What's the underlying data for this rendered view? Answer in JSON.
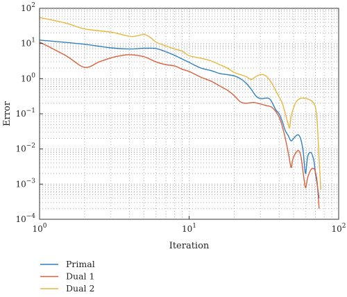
{
  "chart_data": {
    "type": "line",
    "title": "",
    "xlabel": "Iteration",
    "ylabel": "Error",
    "xscale": "log",
    "yscale": "log",
    "xlim": [
      1,
      100
    ],
    "ylim": [
      0.0001,
      100
    ],
    "grid": true,
    "legend_position": "bottom-left, outside plot",
    "x_tick_labels": [
      {
        "value": 1,
        "base": "10",
        "exp": "0"
      },
      {
        "value": 10,
        "base": "10",
        "exp": "1"
      },
      {
        "value": 100,
        "base": "10",
        "exp": "2"
      }
    ],
    "y_tick_labels": [
      {
        "value": 0.0001,
        "base": "10",
        "exp": "−4"
      },
      {
        "value": 0.001,
        "base": "10",
        "exp": "−3"
      },
      {
        "value": 0.01,
        "base": "10",
        "exp": "−2"
      },
      {
        "value": 0.1,
        "base": "10",
        "exp": "−1"
      },
      {
        "value": 1,
        "base": "10",
        "exp": "0"
      },
      {
        "value": 10,
        "base": "10",
        "exp": "1"
      },
      {
        "value": 100,
        "base": "10",
        "exp": "2"
      }
    ],
    "series": [
      {
        "name": "Primal",
        "color": "#2f7fc1",
        "points": [
          [
            1,
            12.5
          ],
          [
            2,
            9.5
          ],
          [
            3,
            7.5
          ],
          [
            4,
            7.0
          ],
          [
            5,
            7.3
          ],
          [
            6,
            7.2
          ],
          [
            7,
            5.8
          ],
          [
            8,
            4.6
          ],
          [
            9,
            3.6
          ],
          [
            10,
            2.9
          ],
          [
            12,
            2.0
          ],
          [
            14,
            1.7
          ],
          [
            16,
            1.4
          ],
          [
            18,
            1.3
          ],
          [
            20,
            1.2
          ],
          [
            22,
            1.0
          ],
          [
            24,
            0.75
          ],
          [
            26,
            0.5
          ],
          [
            28,
            0.32
          ],
          [
            30,
            0.27
          ],
          [
            33,
            0.28
          ],
          [
            35,
            0.25
          ],
          [
            38,
            0.13
          ],
          [
            40,
            0.1
          ],
          [
            42,
            0.06
          ],
          [
            44,
            0.033
          ],
          [
            46,
            0.024
          ],
          [
            48,
            0.017
          ],
          [
            50,
            0.02
          ],
          [
            52,
            0.024
          ],
          [
            54,
            0.025
          ],
          [
            56,
            0.018
          ],
          [
            58,
            0.008
          ],
          [
            60,
            0.002
          ],
          [
            62,
            0.006
          ],
          [
            65,
            0.008
          ],
          [
            68,
            0.005
          ],
          [
            70,
            0.002
          ],
          [
            72,
            0.0009
          ],
          [
            74,
            0.0004
          ]
        ]
      },
      {
        "name": "Dual 1",
        "color": "#d95f3b",
        "points": [
          [
            1,
            11
          ],
          [
            1.5,
            4.5
          ],
          [
            2,
            2.1
          ],
          [
            2.5,
            3.0
          ],
          [
            3,
            3.9
          ],
          [
            3.5,
            4.5
          ],
          [
            4,
            4.8
          ],
          [
            5,
            4.2
          ],
          [
            6,
            3.0
          ],
          [
            7,
            2.5
          ],
          [
            8,
            2.3
          ],
          [
            9,
            1.85
          ],
          [
            10,
            1.6
          ],
          [
            12,
            1.1
          ],
          [
            14,
            0.85
          ],
          [
            16,
            0.62
          ],
          [
            18,
            0.47
          ],
          [
            20,
            0.33
          ],
          [
            22,
            0.22
          ],
          [
            24,
            0.2
          ],
          [
            27,
            0.21
          ],
          [
            30,
            0.19
          ],
          [
            33,
            0.17
          ],
          [
            36,
            0.15
          ],
          [
            40,
            0.08
          ],
          [
            43,
            0.03
          ],
          [
            46,
            0.008
          ],
          [
            48,
            0.003
          ],
          [
            49,
            0.0045
          ],
          [
            50,
            0.006
          ],
          [
            52,
            0.008
          ],
          [
            54,
            0.009
          ],
          [
            56,
            0.006
          ],
          [
            58,
            0.002
          ],
          [
            60,
            0.0008
          ],
          [
            62,
            0.0015
          ],
          [
            65,
            0.0025
          ],
          [
            68,
            0.0028
          ],
          [
            70,
            0.0022
          ],
          [
            72,
            0.001
          ],
          [
            74,
            0.0002
          ]
        ]
      },
      {
        "name": "Dual 2",
        "color": "#e8b73c",
        "points": [
          [
            1,
            55
          ],
          [
            1.5,
            38
          ],
          [
            2,
            26
          ],
          [
            3,
            21
          ],
          [
            4,
            16
          ],
          [
            4.5,
            16.5
          ],
          [
            5,
            18
          ],
          [
            5.5,
            15
          ],
          [
            6,
            11
          ],
          [
            7,
            8.5
          ],
          [
            8,
            7.0
          ],
          [
            9,
            6.0
          ],
          [
            10,
            4.5
          ],
          [
            12,
            3.8
          ],
          [
            14,
            3.2
          ],
          [
            16,
            2.5
          ],
          [
            18,
            2.0
          ],
          [
            20,
            1.5
          ],
          [
            22,
            1.3
          ],
          [
            24,
            1.15
          ],
          [
            26,
            0.95
          ],
          [
            28,
            1.15
          ],
          [
            30,
            1.3
          ],
          [
            32,
            1.25
          ],
          [
            34,
            1.0
          ],
          [
            36,
            0.7
          ],
          [
            38,
            0.45
          ],
          [
            40,
            0.3
          ],
          [
            42,
            0.2
          ],
          [
            44,
            0.1
          ],
          [
            46,
            0.05
          ],
          [
            47,
            0.04
          ],
          [
            48,
            0.08
          ],
          [
            50,
            0.15
          ],
          [
            52,
            0.22
          ],
          [
            55,
            0.27
          ],
          [
            58,
            0.28
          ],
          [
            61,
            0.27
          ],
          [
            64,
            0.25
          ],
          [
            67,
            0.22
          ],
          [
            70,
            0.15
          ],
          [
            72,
            0.05
          ],
          [
            74,
            0.005
          ],
          [
            76,
            0.0007
          ]
        ]
      }
    ]
  }
}
